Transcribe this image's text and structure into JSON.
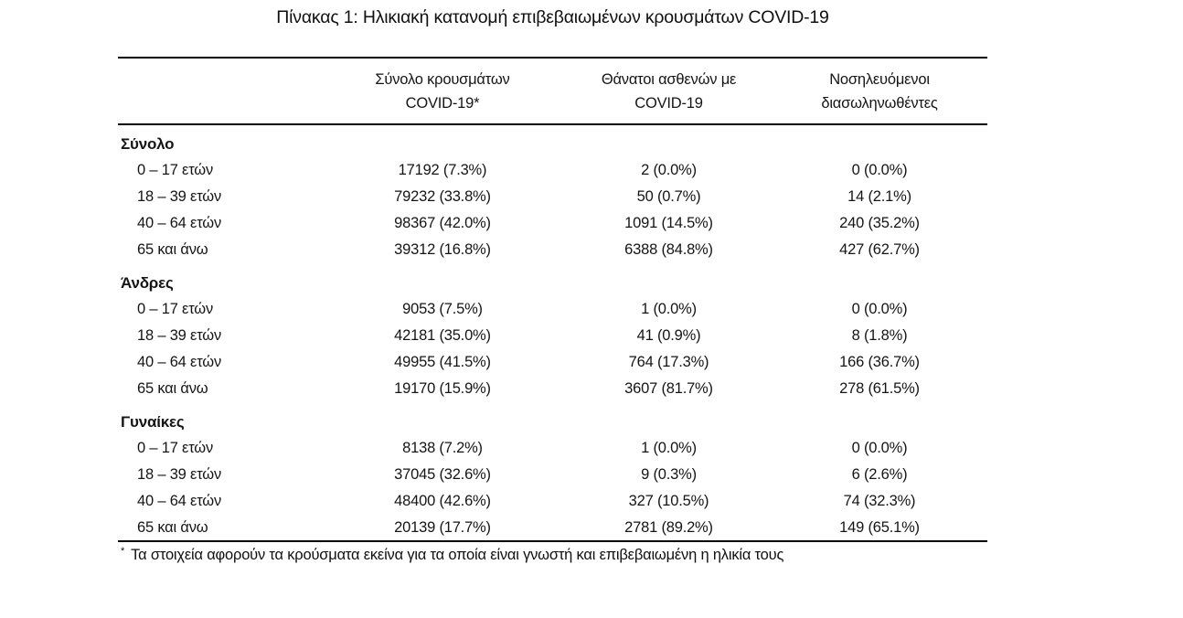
{
  "page": {
    "title": "Πίνακας 1: Ηλικιακή κατανομή επιβεβαιωμένων κρουσμάτων COVID-19"
  },
  "table": {
    "columns": [
      {
        "line1": "",
        "line2": ""
      },
      {
        "line1": "Σύνολο κρουσμάτων",
        "line2": "COVID-19*"
      },
      {
        "line1": "Θάνατοι ασθενών με",
        "line2": "COVID-19"
      },
      {
        "line1": "Νοσηλευόμενοι",
        "line2": "διασωληνωθέντες"
      }
    ],
    "sections": [
      {
        "label": "Σύνολο",
        "rows": [
          {
            "age": "0 – 17 ετών",
            "cases": "17192 (7.3%)",
            "deaths": "2 (0.0%)",
            "intubated": "0 (0.0%)"
          },
          {
            "age": "18 – 39 ετών",
            "cases": "79232 (33.8%)",
            "deaths": "50 (0.7%)",
            "intubated": "14 (2.1%)"
          },
          {
            "age": "40 – 64 ετών",
            "cases": "98367 (42.0%)",
            "deaths": "1091 (14.5%)",
            "intubated": "240 (35.2%)"
          },
          {
            "age": "65 και άνω",
            "cases": "39312 (16.8%)",
            "deaths": "6388 (84.8%)",
            "intubated": "427 (62.7%)"
          }
        ]
      },
      {
        "label": "Άνδρες",
        "rows": [
          {
            "age": "0 – 17 ετών",
            "cases": "9053 (7.5%)",
            "deaths": "1 (0.0%)",
            "intubated": "0 (0.0%)"
          },
          {
            "age": "18 – 39 ετών",
            "cases": "42181 (35.0%)",
            "deaths": "41 (0.9%)",
            "intubated": "8 (1.8%)"
          },
          {
            "age": "40 – 64 ετών",
            "cases": "49955 (41.5%)",
            "deaths": "764 (17.3%)",
            "intubated": "166 (36.7%)"
          },
          {
            "age": "65 και άνω",
            "cases": "19170 (15.9%)",
            "deaths": "3607 (81.7%)",
            "intubated": "278 (61.5%)"
          }
        ]
      },
      {
        "label": "Γυναίκες",
        "rows": [
          {
            "age": "0 – 17 ετών",
            "cases": "8138 (7.2%)",
            "deaths": "1 (0.0%)",
            "intubated": "0 (0.0%)"
          },
          {
            "age": "18 – 39 ετών",
            "cases": "37045 (32.6%)",
            "deaths": "9 (0.3%)",
            "intubated": "6 (2.6%)"
          },
          {
            "age": "40 – 64 ετών",
            "cases": "48400 (42.6%)",
            "deaths": "327 (10.5%)",
            "intubated": "74 (32.3%)"
          },
          {
            "age": "65 και άνω",
            "cases": "20139 (17.7%)",
            "deaths": "2781 (89.2%)",
            "intubated": "149 (65.1%)"
          }
        ]
      }
    ],
    "footnote": {
      "marker": "*",
      "text": "Τα στοιχεία αφορούν τα κρούσματα εκείνα για τα οποία είναι γνωστή και επιβεβαιωμένη η ηλικία τους"
    }
  },
  "colors": {
    "text": "#151515",
    "rule": "#000000",
    "background": "#ffffff"
  }
}
